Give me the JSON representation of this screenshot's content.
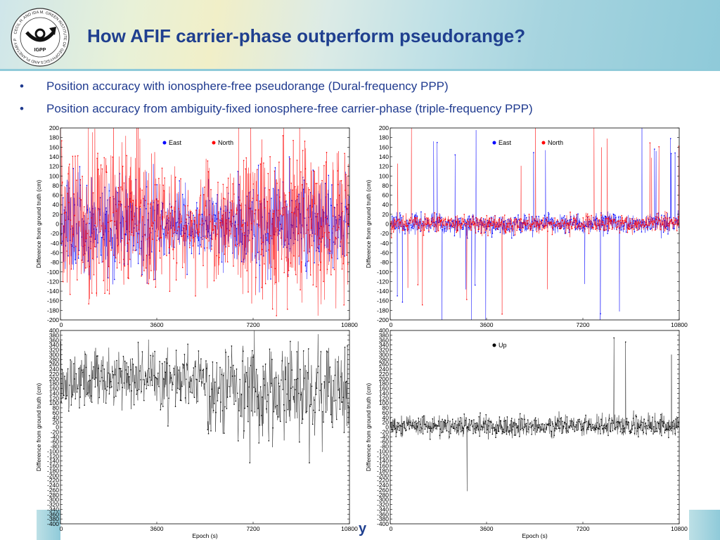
{
  "slide": {
    "title": "How AFIF carrier-phase outperform pseudorange?",
    "bullets": [
      "Position accuracy with ionosphere-free pseudorange (Dural-frequency PPP)",
      "Position accuracy from ambiguity-fixed ionosphere-free carrier-phase (triple-frequency PPP)"
    ],
    "bullet_glyph": "•",
    "logo": {
      "text": "CECIL H. AND IDA M. GREEN INSTITUTE OF GEOPHYSICS AND PLANETARY PHYSICS",
      "abbrev": "IGPP",
      "icon": "post-horn-icon"
    },
    "colors": {
      "title": "#1f3f8f",
      "bullet_text": "#1f3a8f",
      "east": "#0000ff",
      "north": "#ff0000",
      "up": "#000000"
    }
  },
  "chart_data": [
    {
      "type": "line",
      "panel": "top-left",
      "ylabel": "Difference from ground truth (cm)",
      "xlabel": "",
      "xlim": [
        0,
        10800
      ],
      "ylim": [
        -200,
        200
      ],
      "xticks": [
        0,
        3600,
        7200,
        10800
      ],
      "yticks": [
        -200,
        -180,
        -160,
        -140,
        -120,
        -100,
        -80,
        -60,
        -40,
        -20,
        0,
        20,
        40,
        60,
        80,
        100,
        120,
        140,
        160,
        180,
        200
      ],
      "legend": "top-center",
      "series": [
        {
          "name": "East",
          "color": "#0000ff",
          "noise_sd_cm": 50,
          "mean_cm": 0
        },
        {
          "name": "North",
          "color": "#ff0000",
          "noise_sd_cm": 80,
          "mean_cm": 0
        }
      ]
    },
    {
      "type": "line",
      "panel": "top-right",
      "ylabel": "Difference from ground truth (cm)",
      "xlabel": "",
      "xlim": [
        0,
        10800
      ],
      "ylim": [
        -200,
        200
      ],
      "xticks": [
        0,
        3600,
        7200,
        10800
      ],
      "yticks": [
        -200,
        -180,
        -160,
        -140,
        -120,
        -100,
        -80,
        -60,
        -40,
        -20,
        0,
        20,
        40,
        60,
        80,
        100,
        120,
        140,
        160,
        180,
        200
      ],
      "legend": "top-center",
      "series": [
        {
          "name": "East",
          "color": "#0000ff",
          "noise_sd_cm": 10,
          "mean_cm": 0
        },
        {
          "name": "North",
          "color": "#ff0000",
          "noise_sd_cm": 9,
          "mean_cm": 0
        }
      ]
    },
    {
      "type": "line",
      "panel": "bottom-left",
      "ylabel": "Difference from ground truth (cm)",
      "xlabel": "",
      "xlim": [
        0,
        10800
      ],
      "ylim": [
        -400,
        400
      ],
      "xticks": [
        0,
        3600,
        7200,
        10800
      ],
      "yticks": [
        -400,
        -380,
        -360,
        -340,
        -320,
        -300,
        -280,
        -260,
        -240,
        -220,
        -200,
        -180,
        -160,
        -140,
        -120,
        -100,
        -80,
        -60,
        -40,
        -20,
        0,
        20,
        40,
        60,
        80,
        100,
        120,
        140,
        160,
        180,
        200,
        220,
        240,
        260,
        280,
        300,
        320,
        340,
        360,
        380,
        400
      ],
      "yticks_labeled": [
        -400,
        -380,
        -360,
        -340,
        -320,
        -300,
        -280,
        -260,
        -240,
        -220,
        -200,
        -180,
        -160,
        -140,
        -120,
        -100,
        -80,
        -60,
        -40,
        -20,
        0,
        20,
        40,
        60,
        80,
        100,
        120,
        140,
        160,
        180,
        200,
        220,
        240,
        260,
        280,
        300,
        320,
        340,
        360,
        380,
        400
      ],
      "legend": "none",
      "series": [
        {
          "name": "",
          "color": "#000000",
          "noise_sd_cm": 70,
          "mean_cm": 200
        }
      ]
    },
    {
      "type": "line",
      "panel": "bottom-right",
      "ylabel": "Difference from ground truth (cm)",
      "xlabel": "Epoch (s)",
      "xlim": [
        0,
        10800
      ],
      "ylim": [
        -400,
        400
      ],
      "xticks": [
        0,
        3600,
        7200,
        10800
      ],
      "yticks": [
        -400,
        -380,
        -360,
        -340,
        -320,
        -300,
        -280,
        -260,
        -240,
        -220,
        -200,
        -180,
        -160,
        -140,
        -120,
        -100,
        -80,
        -60,
        -40,
        -20,
        0,
        20,
        40,
        60,
        80,
        100,
        120,
        140,
        160,
        180,
        200,
        220,
        240,
        260,
        280,
        300,
        320,
        340,
        360,
        380,
        400
      ],
      "legend": "top-center",
      "series": [
        {
          "name": "Up",
          "color": "#000000",
          "noise_sd_cm": 22,
          "mean_cm": 5
        }
      ]
    }
  ],
  "footer": {
    "epoch_label_left": "Epoch (s)",
    "stray_glyph": "y"
  }
}
